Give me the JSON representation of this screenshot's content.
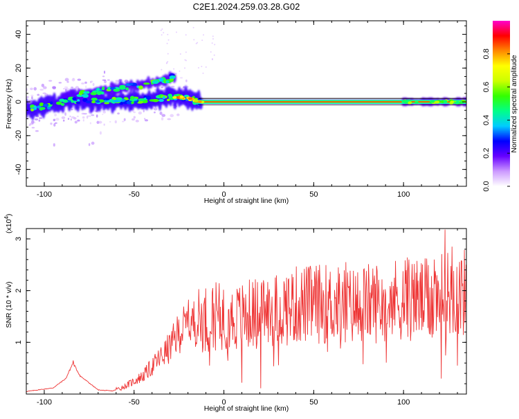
{
  "figure": {
    "title": "C2E1.2024.259.03.28.G02"
  },
  "chart_data": [
    {
      "type": "heatmap",
      "name": "spectrogram",
      "xlabel": "Height of straight line (km)",
      "ylabel": "Frequency (Hz)",
      "xlim": [
        -110,
        135
      ],
      "ylim": [
        -50,
        48
      ],
      "xticks": [
        -100,
        -50,
        0,
        50,
        100
      ],
      "yticks": [
        -40,
        -20,
        0,
        20,
        40
      ],
      "colorbar": {
        "label": "Normalized spectral amplitude",
        "range": [
          0,
          1
        ],
        "ticks": [
          0.0,
          0.2,
          0.4,
          0.6,
          0.8
        ],
        "tick_labels": [
          "0.0",
          "0.2",
          "0.4",
          "0.6",
          "0.8"
        ],
        "colormap": [
          "#ffffff",
          "#cc99ff",
          "#6600ff",
          "#0000ff",
          "#00ccff",
          "#00ff88",
          "#33ff00",
          "#ccff00",
          "#ffff00",
          "#ff8800",
          "#ff0000",
          "#ff00cc"
        ]
      },
      "ridges": [
        {
          "name": "main",
          "points": [
            [
              -110,
              -4
            ],
            [
              -95,
              -2
            ],
            [
              -85,
              1
            ],
            [
              -70,
              0
            ],
            [
              -50,
              1
            ],
            [
              -35,
              2
            ],
            [
              -27,
              3
            ],
            [
              -20,
              2
            ],
            [
              -15,
              0.5
            ],
            [
              -10,
              0
            ],
            [
              0,
              0
            ],
            [
              135,
              0
            ]
          ]
        },
        {
          "name": "rising",
          "points": [
            [
              -90,
              3
            ],
            [
              -75,
              5
            ],
            [
              -60,
              8
            ],
            [
              -45,
              10
            ],
            [
              -35,
              12
            ],
            [
              -27,
              15
            ]
          ]
        }
      ]
    },
    {
      "type": "line",
      "name": "snr",
      "xlabel": "Height of straight line (km)",
      "ylabel": "SNR (10 * v/v)",
      "scale_note": "(x10",
      "scale_exp": "4",
      "scale_close": ")",
      "xlim": [
        -110,
        135
      ],
      "ylim": [
        0,
        3.2
      ],
      "xticks": [
        -100,
        -50,
        0,
        50,
        100
      ],
      "yticks": [
        1,
        2,
        3
      ],
      "color": "#ee3333",
      "envelope": [
        [
          -110,
          0.05
        ],
        [
          -95,
          0.12
        ],
        [
          -88,
          0.3
        ],
        [
          -84,
          0.6
        ],
        [
          -80,
          0.35
        ],
        [
          -70,
          0.08
        ],
        [
          -62,
          0.06
        ],
        [
          -55,
          0.15
        ],
        [
          -45,
          0.35
        ],
        [
          -38,
          0.6
        ],
        [
          -30,
          0.9
        ],
        [
          -25,
          1.2
        ],
        [
          -20,
          1.35
        ],
        [
          -12,
          1.45
        ],
        [
          -5,
          1.5
        ],
        [
          5,
          1.45
        ],
        [
          15,
          1.55
        ],
        [
          25,
          1.6
        ],
        [
          40,
          1.72
        ],
        [
          55,
          1.75
        ],
        [
          70,
          1.7
        ],
        [
          85,
          1.78
        ],
        [
          100,
          1.85
        ],
        [
          115,
          1.8
        ],
        [
          125,
          1.95
        ],
        [
          135,
          1.95
        ]
      ],
      "spikes": [
        [
          -84,
          0.65
        ],
        [
          -30,
          1.05
        ],
        [
          -20,
          1.55
        ],
        [
          10,
          0.22
        ],
        [
          22,
          2.2
        ],
        [
          35,
          2.25
        ],
        [
          68,
          2.55
        ],
        [
          103,
          2.6
        ],
        [
          117,
          2.6
        ],
        [
          123,
          3.18
        ],
        [
          127,
          2.85
        ],
        [
          135,
          2.5
        ]
      ]
    }
  ]
}
